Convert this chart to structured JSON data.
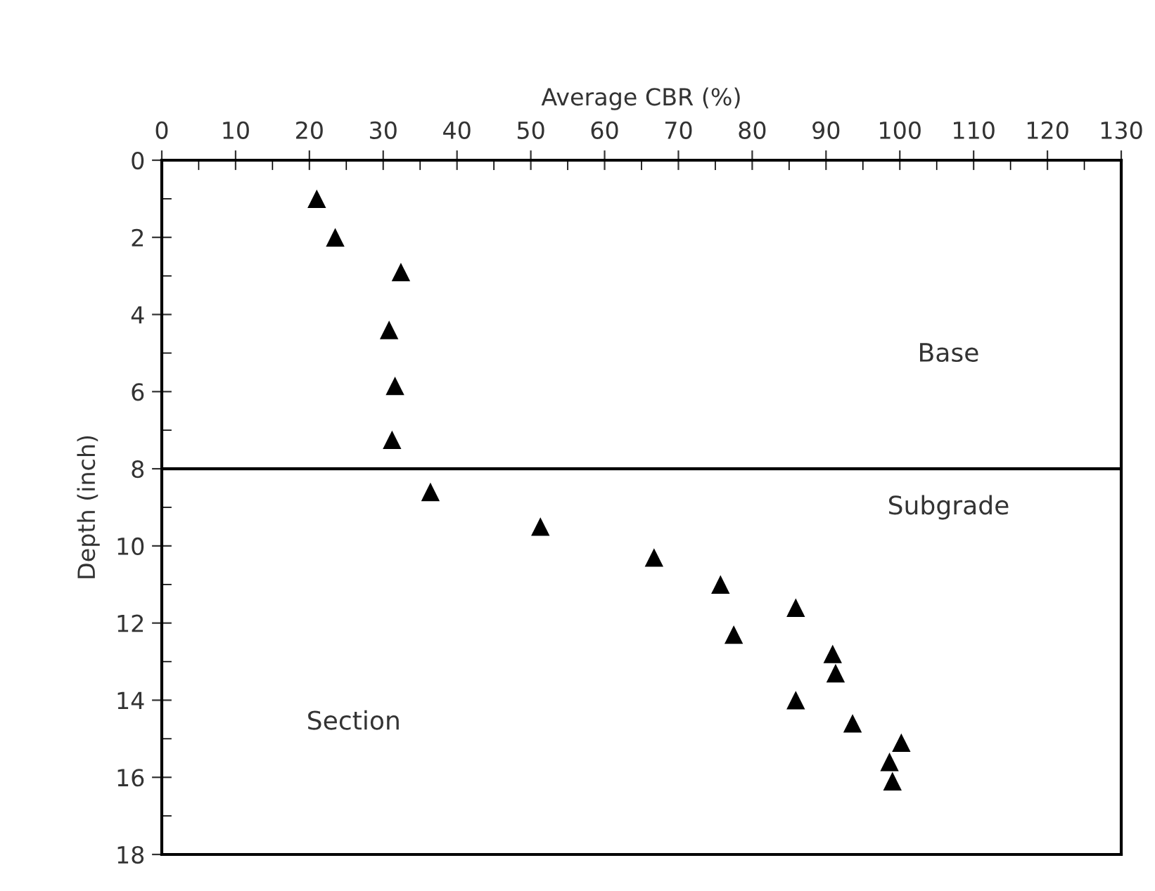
{
  "chart_data": {
    "type": "scatter",
    "xlabel": "Average CBR (%)",
    "ylabel": "Depth (inch)",
    "x": [
      21,
      23.5,
      32.4,
      30.8,
      31.6,
      31.2,
      36.4,
      51.3,
      66.7,
      75.7,
      85.9,
      77.5,
      90.9,
      91.3,
      85.9,
      93.6,
      100.2,
      98.6,
      99.0
    ],
    "series": [
      {
        "color": "#000000",
        "values": [
          1.0,
          2.0,
          2.9,
          4.4,
          5.85,
          7.25,
          8.6,
          9.5,
          10.3,
          11.0,
          11.6,
          12.3,
          12.8,
          13.3,
          14.0,
          14.6,
          15.1,
          15.6,
          16.1
        ]
      }
    ],
    "marker": "triangle",
    "xlim": [
      0,
      130
    ],
    "xticks": [
      0,
      10,
      20,
      30,
      40,
      50,
      60,
      70,
      80,
      90,
      100,
      110,
      120,
      130
    ],
    "ylim": [
      18,
      0
    ],
    "yticks": [
      0,
      2,
      4,
      6,
      8,
      10,
      12,
      14,
      16,
      18
    ],
    "grid": false,
    "legend": false,
    "ref_lines": [
      {
        "axis": "y",
        "value": 8,
        "color": "#000000",
        "line_style": "solid"
      }
    ],
    "annotations": [
      "Base",
      "Subgrade",
      "Section"
    ]
  }
}
